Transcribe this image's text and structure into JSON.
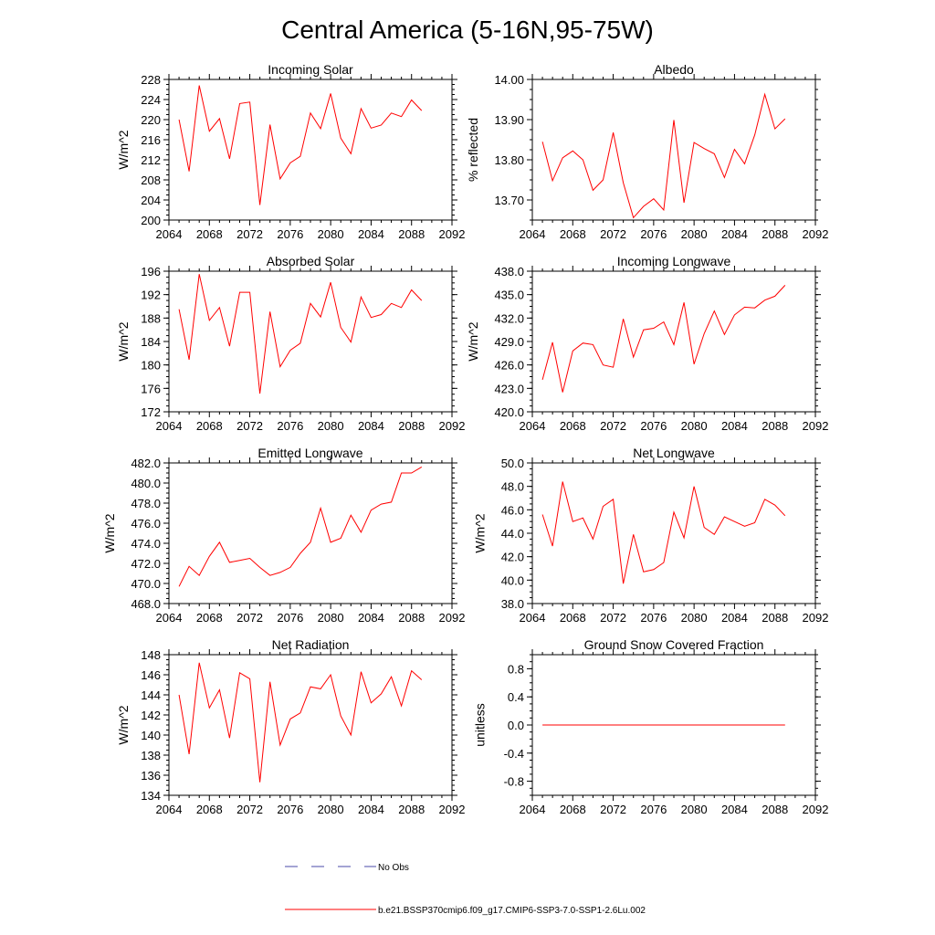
{
  "page": {
    "title": "Central America (5-16N,95-75W)"
  },
  "legend": {
    "obs_label": "No Obs",
    "obs_color": "#4a4aa8",
    "model_label": "b.e21.BSSP370cmip6.f09_g17.CMIP6-SSP3-7.0-SSP1-2.6Lu.002",
    "model_color": "#ff0000"
  },
  "chart_data": [
    {
      "type": "line",
      "title": "Incoming Solar",
      "ylabel": "W/m^2",
      "xlim": [
        2064,
        2092
      ],
      "ylim": [
        200,
        228
      ],
      "xticks": [
        2064,
        2068,
        2072,
        2076,
        2080,
        2084,
        2088,
        2092
      ],
      "yticks": [
        "200",
        "204",
        "208",
        "212",
        "216",
        "220",
        "224",
        "228"
      ],
      "x": [
        2065,
        2066,
        2067,
        2068,
        2069,
        2070,
        2071,
        2072,
        2073,
        2074,
        2075,
        2076,
        2077,
        2078,
        2079,
        2080,
        2081,
        2082,
        2083,
        2084,
        2085,
        2086,
        2087,
        2088,
        2089
      ],
      "series": [
        {
          "values": [
            220.0,
            209.7,
            226.8,
            217.7,
            220.2,
            212.2,
            223.2,
            223.5,
            203.0,
            219.0,
            208.2,
            211.4,
            212.7,
            221.3,
            218.2,
            225.2,
            216.3,
            213.2,
            222.2,
            218.3,
            218.9,
            221.3,
            220.6,
            223.9,
            221.8
          ]
        }
      ]
    },
    {
      "type": "line",
      "title": "Albedo",
      "ylabel": "% reflected",
      "xlim": [
        2064,
        2092
      ],
      "ylim": [
        13.65,
        14.0
      ],
      "xticks": [
        2064,
        2068,
        2072,
        2076,
        2080,
        2084,
        2088,
        2092
      ],
      "yticks": [
        "13.70",
        "13.80",
        "13.90",
        "14.00"
      ],
      "x": [
        2065,
        2066,
        2067,
        2068,
        2069,
        2070,
        2071,
        2072,
        2073,
        2074,
        2075,
        2076,
        2077,
        2078,
        2079,
        2080,
        2081,
        2082,
        2083,
        2084,
        2085,
        2086,
        2087,
        2088,
        2089
      ],
      "series": [
        {
          "values": [
            13.845,
            13.748,
            13.805,
            13.822,
            13.8,
            13.724,
            13.75,
            13.868,
            13.743,
            13.656,
            13.684,
            13.703,
            13.675,
            13.899,
            13.693,
            13.843,
            13.828,
            13.815,
            13.756,
            13.826,
            13.79,
            13.862,
            13.963,
            13.877,
            13.902
          ]
        }
      ]
    },
    {
      "type": "line",
      "title": "Absorbed Solar",
      "ylabel": "W/m^2",
      "xlim": [
        2064,
        2092
      ],
      "ylim": [
        172,
        196
      ],
      "xticks": [
        2064,
        2068,
        2072,
        2076,
        2080,
        2084,
        2088,
        2092
      ],
      "yticks": [
        "172",
        "176",
        "180",
        "184",
        "188",
        "192",
        "196"
      ],
      "x": [
        2065,
        2066,
        2067,
        2068,
        2069,
        2070,
        2071,
        2072,
        2073,
        2074,
        2075,
        2076,
        2077,
        2078,
        2079,
        2080,
        2081,
        2082,
        2083,
        2084,
        2085,
        2086,
        2087,
        2088,
        2089
      ],
      "series": [
        {
          "values": [
            189.5,
            180.9,
            195.5,
            187.6,
            189.8,
            183.2,
            192.4,
            192.4,
            175.1,
            189.1,
            179.7,
            182.5,
            183.7,
            190.5,
            188.2,
            194.1,
            186.4,
            183.9,
            191.6,
            188.1,
            188.6,
            190.5,
            189.8,
            192.8,
            191.0
          ]
        }
      ]
    },
    {
      "type": "line",
      "title": "Incoming Longwave",
      "ylabel": "W/m^2",
      "xlim": [
        2064,
        2092
      ],
      "ylim": [
        420,
        438
      ],
      "xticks": [
        2064,
        2068,
        2072,
        2076,
        2080,
        2084,
        2088,
        2092
      ],
      "yticks": [
        "420.0",
        "423.0",
        "426.0",
        "429.0",
        "432.0",
        "435.0",
        "438.0"
      ],
      "x": [
        2065,
        2066,
        2067,
        2068,
        2069,
        2070,
        2071,
        2072,
        2073,
        2074,
        2075,
        2076,
        2077,
        2078,
        2079,
        2080,
        2081,
        2082,
        2083,
        2084,
        2085,
        2086,
        2087,
        2088,
        2089
      ],
      "series": [
        {
          "values": [
            424.1,
            428.9,
            422.5,
            427.8,
            428.8,
            428.6,
            426.0,
            425.7,
            431.9,
            427.0,
            430.5,
            430.7,
            431.5,
            428.6,
            434.0,
            426.1,
            430.0,
            432.9,
            429.9,
            432.4,
            433.4,
            433.3,
            434.3,
            434.8,
            436.2
          ]
        }
      ]
    },
    {
      "type": "line",
      "title": "Emitted Longwave",
      "ylabel": "W/m^2",
      "xlim": [
        2064,
        2092
      ],
      "ylim": [
        468,
        482
      ],
      "xticks": [
        2064,
        2068,
        2072,
        2076,
        2080,
        2084,
        2088,
        2092
      ],
      "yticks": [
        "468.0",
        "470.0",
        "472.0",
        "474.0",
        "476.0",
        "478.0",
        "480.0",
        "482.0"
      ],
      "x": [
        2065,
        2066,
        2067,
        2068,
        2069,
        2070,
        2071,
        2072,
        2073,
        2074,
        2075,
        2076,
        2077,
        2078,
        2079,
        2080,
        2081,
        2082,
        2083,
        2084,
        2085,
        2086,
        2087,
        2088,
        2089
      ],
      "series": [
        {
          "values": [
            469.7,
            471.7,
            470.8,
            472.7,
            474.1,
            472.1,
            472.3,
            472.5,
            471.6,
            470.8,
            471.1,
            471.6,
            473.0,
            474.1,
            477.5,
            474.1,
            474.5,
            476.8,
            475.1,
            477.3,
            477.9,
            478.1,
            481.0,
            481.0,
            481.6
          ]
        }
      ]
    },
    {
      "type": "line",
      "title": "Net Longwave",
      "ylabel": "W/m^2",
      "xlim": [
        2064,
        2092
      ],
      "ylim": [
        38,
        50
      ],
      "xticks": [
        2064,
        2068,
        2072,
        2076,
        2080,
        2084,
        2088,
        2092
      ],
      "yticks": [
        "38.0",
        "40.0",
        "42.0",
        "44.0",
        "46.0",
        "48.0",
        "50.0"
      ],
      "x": [
        2065,
        2066,
        2067,
        2068,
        2069,
        2070,
        2071,
        2072,
        2073,
        2074,
        2075,
        2076,
        2077,
        2078,
        2079,
        2080,
        2081,
        2082,
        2083,
        2084,
        2085,
        2086,
        2087,
        2088,
        2089
      ],
      "series": [
        {
          "values": [
            45.6,
            42.9,
            48.4,
            45.0,
            45.3,
            43.5,
            46.3,
            46.9,
            39.7,
            43.9,
            40.7,
            40.9,
            41.5,
            45.8,
            43.6,
            48.0,
            44.5,
            43.9,
            45.4,
            45.0,
            44.6,
            44.9,
            46.9,
            46.4,
            45.5
          ]
        }
      ]
    },
    {
      "type": "line",
      "title": "Net Radiation",
      "ylabel": "W/m^2",
      "xlim": [
        2064,
        2092
      ],
      "ylim": [
        134,
        148
      ],
      "xticks": [
        2064,
        2068,
        2072,
        2076,
        2080,
        2084,
        2088,
        2092
      ],
      "yticks": [
        "134",
        "136",
        "138",
        "140",
        "142",
        "144",
        "146",
        "148"
      ],
      "x": [
        2065,
        2066,
        2067,
        2068,
        2069,
        2070,
        2071,
        2072,
        2073,
        2074,
        2075,
        2076,
        2077,
        2078,
        2079,
        2080,
        2081,
        2082,
        2083,
        2084,
        2085,
        2086,
        2087,
        2088,
        2089
      ],
      "series": [
        {
          "values": [
            144.0,
            138.1,
            147.2,
            142.7,
            144.5,
            139.7,
            146.2,
            145.6,
            135.3,
            145.3,
            139.0,
            141.6,
            142.2,
            144.8,
            144.6,
            146.0,
            141.9,
            140.0,
            146.3,
            143.2,
            144.1,
            145.8,
            142.9,
            146.4,
            145.5
          ]
        }
      ]
    },
    {
      "type": "line",
      "title": "Ground Snow Covered Fraction",
      "ylabel": "unitless",
      "xlim": [
        2064,
        2092
      ],
      "ylim": [
        -1.0,
        1.0
      ],
      "xticks": [
        2064,
        2068,
        2072,
        2076,
        2080,
        2084,
        2088,
        2092
      ],
      "yticks": [
        "-0.8",
        "-0.4",
        "0.0",
        "0.4",
        "0.8"
      ],
      "x": [
        2065,
        2066,
        2067,
        2068,
        2069,
        2070,
        2071,
        2072,
        2073,
        2074,
        2075,
        2076,
        2077,
        2078,
        2079,
        2080,
        2081,
        2082,
        2083,
        2084,
        2085,
        2086,
        2087,
        2088,
        2089
      ],
      "series": [
        {
          "values": [
            0,
            0,
            0,
            0,
            0,
            0,
            0,
            0,
            0,
            0,
            0,
            0,
            0,
            0,
            0,
            0,
            0,
            0,
            0,
            0,
            0,
            0,
            0,
            0,
            0
          ]
        }
      ]
    }
  ]
}
